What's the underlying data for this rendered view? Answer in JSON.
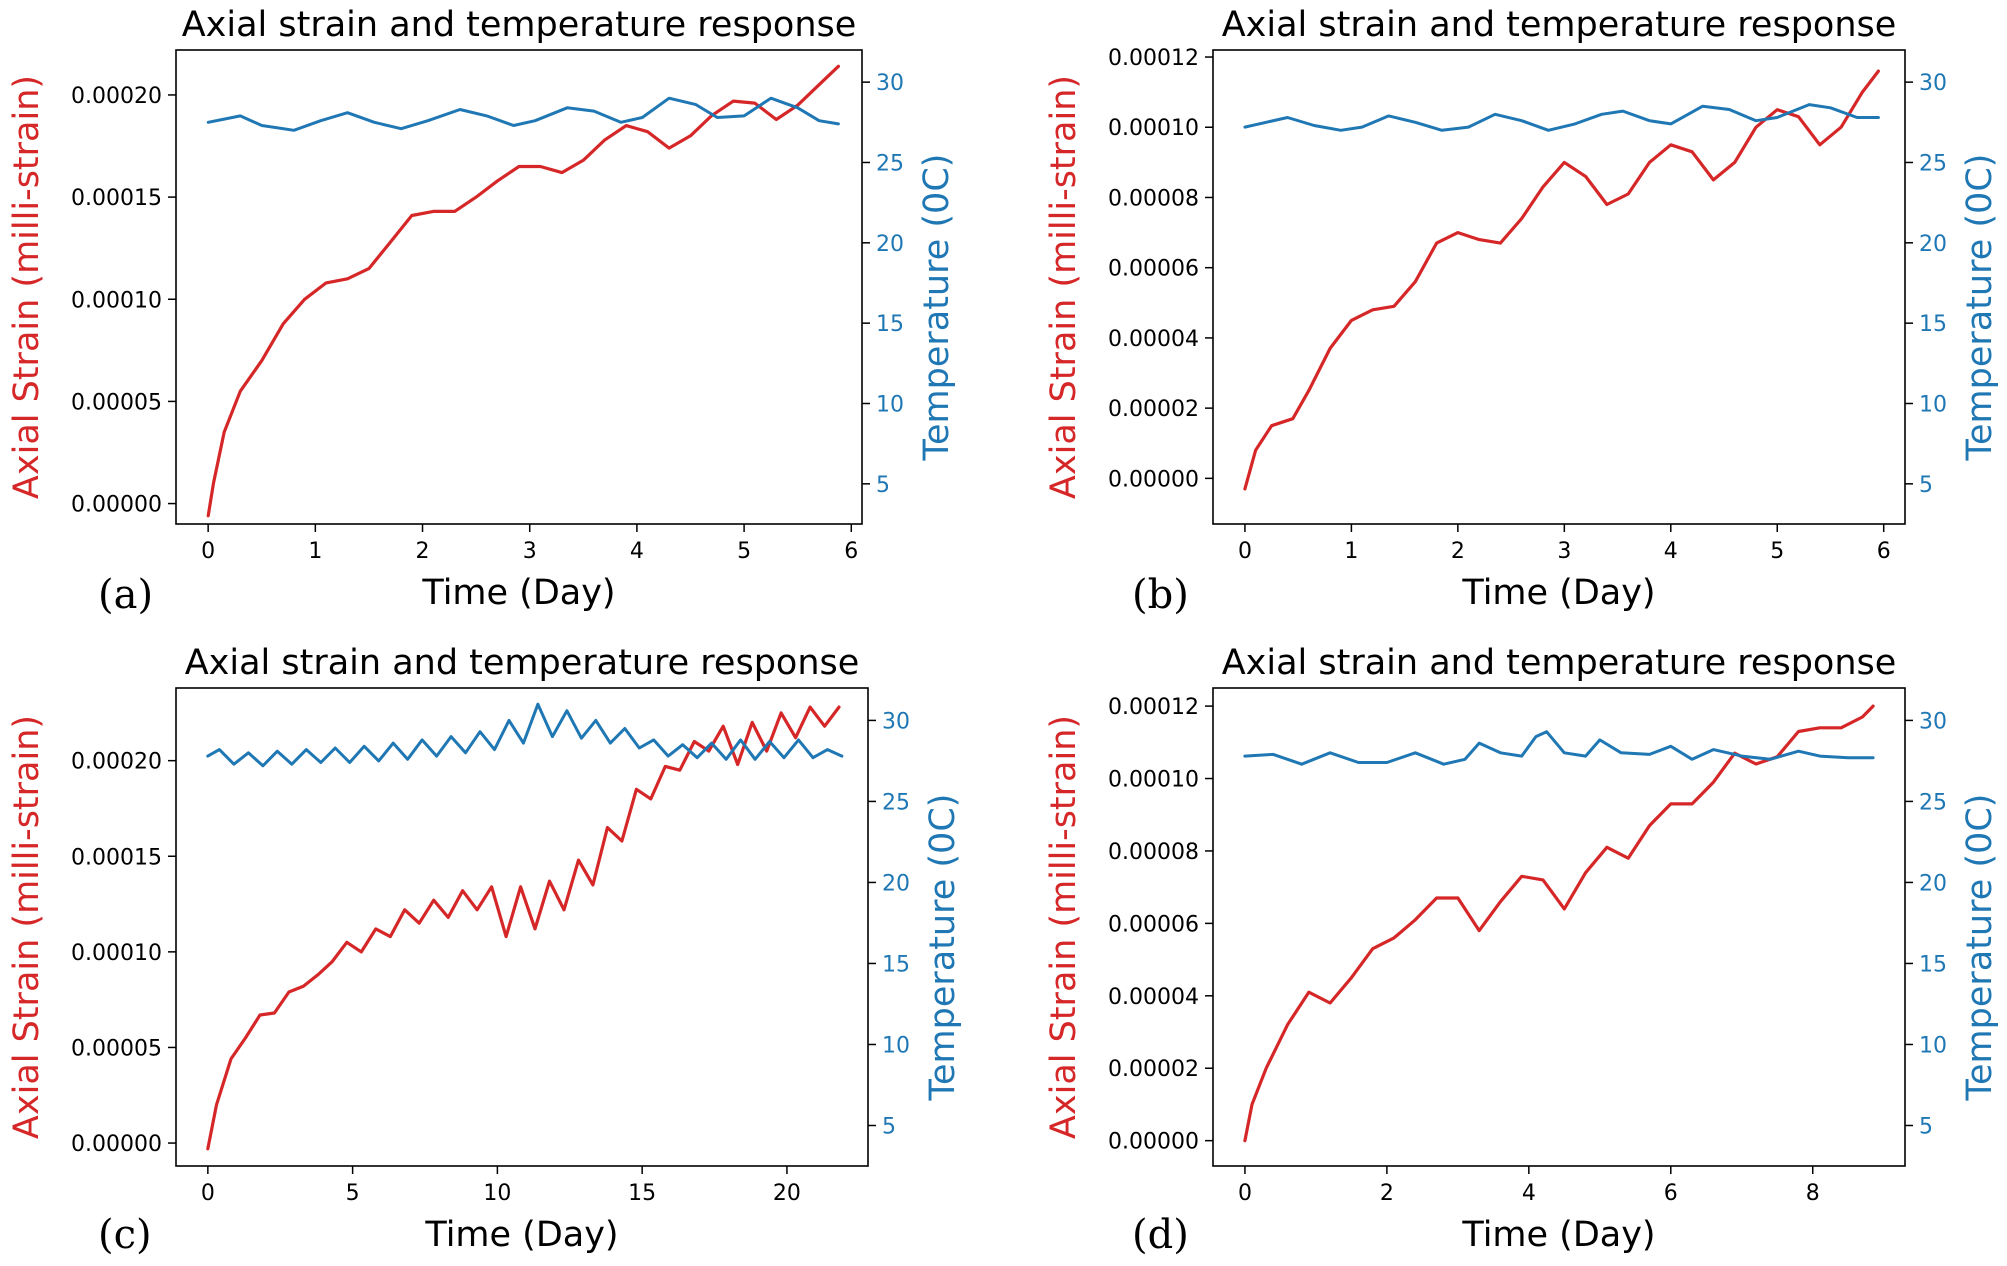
{
  "colors": {
    "strain": "#d62728",
    "temperature": "#1f77b4",
    "axes": "#000000"
  },
  "chart_data": [
    {
      "panel_label": "(a)",
      "type": "line",
      "title": "Axial strain and temperature response",
      "xlabel": "Time (Day)",
      "ylabel": "Axial Strain (milli-strain)",
      "y2label": "Temperature (0C)",
      "xlim": [
        -0.3,
        6.1
      ],
      "ylim": [
        -1e-05,
        0.000222
      ],
      "y2lim": [
        2.5,
        32
      ],
      "xticks": [
        0,
        1,
        2,
        3,
        4,
        5,
        6
      ],
      "yticks": [
        0,
        5e-05,
        0.0001,
        0.00015,
        0.0002
      ],
      "ytick_labels": [
        "0.00000",
        "0.00005",
        "0.00010",
        "0.00015",
        "0.00020"
      ],
      "y2ticks": [
        5,
        10,
        15,
        20,
        25,
        30
      ],
      "series": [
        {
          "name": "Axial strain",
          "axis": "left",
          "x": [
            0,
            0.05,
            0.15,
            0.3,
            0.5,
            0.7,
            0.9,
            1.1,
            1.3,
            1.5,
            1.7,
            1.9,
            2.1,
            2.3,
            2.5,
            2.7,
            2.9,
            3.1,
            3.3,
            3.5,
            3.7,
            3.9,
            4.1,
            4.3,
            4.5,
            4.7,
            4.9,
            5.1,
            5.3,
            5.5,
            5.7,
            5.88
          ],
          "y": [
            -6e-06,
            1e-05,
            3.5e-05,
            5.5e-05,
            7e-05,
            8.8e-05,
            0.0001,
            0.000108,
            0.00011,
            0.000115,
            0.000128,
            0.000141,
            0.000143,
            0.000143,
            0.00015,
            0.000158,
            0.000165,
            0.000165,
            0.000162,
            0.000168,
            0.000178,
            0.000185,
            0.000182,
            0.000174,
            0.00018,
            0.00019,
            0.000197,
            0.000196,
            0.000188,
            0.000195,
            0.000205,
            0.000214
          ]
        },
        {
          "name": "Temperature",
          "axis": "right",
          "x": [
            0,
            0.15,
            0.3,
            0.5,
            0.8,
            1.05,
            1.3,
            1.55,
            1.8,
            2.05,
            2.35,
            2.6,
            2.85,
            3.05,
            3.35,
            3.6,
            3.85,
            4.05,
            4.3,
            4.55,
            4.75,
            5.0,
            5.25,
            5.5,
            5.7,
            5.88
          ],
          "y": [
            27.5,
            27.7,
            27.9,
            27.3,
            27.0,
            27.6,
            28.1,
            27.5,
            27.1,
            27.6,
            28.3,
            27.9,
            27.3,
            27.6,
            28.4,
            28.2,
            27.5,
            27.8,
            29.0,
            28.6,
            27.8,
            27.9,
            29.0,
            28.4,
            27.6,
            27.4
          ]
        }
      ]
    },
    {
      "panel_label": "(b)",
      "type": "line",
      "title": "Axial strain and temperature response",
      "xlabel": "Time (Day)",
      "ylabel": "Axial Strain (milli-strain)",
      "y2label": "Temperature (0C)",
      "xlim": [
        -0.3,
        6.2
      ],
      "ylim": [
        -1.3e-05,
        0.000122
      ],
      "y2lim": [
        2.5,
        32
      ],
      "xticks": [
        0,
        1,
        2,
        3,
        4,
        5,
        6
      ],
      "yticks": [
        0,
        2e-05,
        4e-05,
        6e-05,
        8e-05,
        0.0001,
        0.00012
      ],
      "ytick_labels": [
        "0.00000",
        "0.00002",
        "0.00004",
        "0.00006",
        "0.00008",
        "0.00010",
        "0.00012"
      ],
      "y2ticks": [
        5,
        10,
        15,
        20,
        25,
        30
      ],
      "series": [
        {
          "name": "Axial strain",
          "axis": "left",
          "x": [
            0,
            0.1,
            0.25,
            0.45,
            0.6,
            0.8,
            1.0,
            1.2,
            1.4,
            1.6,
            1.8,
            2.0,
            2.2,
            2.4,
            2.6,
            2.8,
            3.0,
            3.2,
            3.4,
            3.6,
            3.8,
            4.0,
            4.2,
            4.4,
            4.6,
            4.8,
            5.0,
            5.2,
            5.4,
            5.6,
            5.8,
            5.95
          ],
          "y": [
            -3e-06,
            8e-06,
            1.5e-05,
            1.7e-05,
            2.5e-05,
            3.7e-05,
            4.5e-05,
            4.8e-05,
            4.9e-05,
            5.6e-05,
            6.7e-05,
            7e-05,
            6.8e-05,
            6.7e-05,
            7.4e-05,
            8.3e-05,
            9e-05,
            8.6e-05,
            7.8e-05,
            8.1e-05,
            9e-05,
            9.5e-05,
            9.3e-05,
            8.5e-05,
            9e-05,
            0.0001,
            0.000105,
            0.000103,
            9.5e-05,
            0.0001,
            0.00011,
            0.000116
          ]
        },
        {
          "name": "Temperature",
          "axis": "right",
          "x": [
            0,
            0.2,
            0.4,
            0.65,
            0.9,
            1.1,
            1.35,
            1.6,
            1.85,
            2.1,
            2.35,
            2.6,
            2.85,
            3.1,
            3.35,
            3.55,
            3.8,
            4.0,
            4.3,
            4.55,
            4.8,
            5.0,
            5.3,
            5.5,
            5.75,
            5.95
          ],
          "y": [
            27.2,
            27.5,
            27.8,
            27.3,
            27.0,
            27.2,
            27.9,
            27.5,
            27.0,
            27.2,
            28.0,
            27.6,
            27.0,
            27.4,
            28.0,
            28.2,
            27.6,
            27.4,
            28.5,
            28.3,
            27.6,
            27.8,
            28.6,
            28.4,
            27.8,
            27.8
          ]
        }
      ]
    },
    {
      "panel_label": "(c)",
      "type": "line",
      "title": "Axial strain and temperature response",
      "xlabel": "Time (Day)",
      "ylabel": "Axial Strain (milli-strain)",
      "y2label": "Temperature (0C)",
      "xlim": [
        -1.1,
        22.8
      ],
      "ylim": [
        -1.2e-05,
        0.000238
      ],
      "y2lim": [
        2.5,
        32
      ],
      "xticks": [
        0,
        5,
        10,
        15,
        20
      ],
      "yticks": [
        0,
        5e-05,
        0.0001,
        0.00015,
        0.0002
      ],
      "ytick_labels": [
        "0.00000",
        "0.00005",
        "0.00010",
        "0.00015",
        "0.00020"
      ],
      "y2ticks": [
        5,
        10,
        15,
        20,
        25,
        30
      ],
      "series": [
        {
          "name": "Axial strain",
          "axis": "left",
          "x": [
            0,
            0.3,
            0.8,
            1.3,
            1.8,
            2.3,
            2.8,
            3.3,
            3.8,
            4.3,
            4.8,
            5.3,
            5.8,
            6.3,
            6.8,
            7.3,
            7.8,
            8.3,
            8.8,
            9.3,
            9.8,
            10.3,
            10.8,
            11.3,
            11.8,
            12.3,
            12.8,
            13.3,
            13.8,
            14.3,
            14.8,
            15.3,
            15.8,
            16.3,
            16.8,
            17.3,
            17.8,
            18.3,
            18.8,
            19.3,
            19.8,
            20.3,
            20.8,
            21.3,
            21.8
          ],
          "y": [
            -3e-06,
            2e-05,
            4.4e-05,
            5.5e-05,
            6.7e-05,
            6.8e-05,
            7.9e-05,
            8.2e-05,
            8.8e-05,
            9.5e-05,
            0.000105,
            0.0001,
            0.000112,
            0.000108,
            0.000122,
            0.000115,
            0.000127,
            0.000118,
            0.000132,
            0.000122,
            0.000134,
            0.000108,
            0.000134,
            0.000112,
            0.000137,
            0.000122,
            0.000148,
            0.000135,
            0.000165,
            0.000158,
            0.000185,
            0.00018,
            0.000197,
            0.000195,
            0.00021,
            0.000205,
            0.000218,
            0.000198,
            0.00022,
            0.000205,
            0.000225,
            0.000212,
            0.000228,
            0.000218,
            0.000228
          ]
        },
        {
          "name": "Temperature",
          "axis": "right",
          "x": [
            0,
            0.4,
            0.9,
            1.4,
            1.9,
            2.4,
            2.9,
            3.4,
            3.9,
            4.4,
            4.9,
            5.4,
            5.9,
            6.4,
            6.9,
            7.4,
            7.9,
            8.4,
            8.9,
            9.4,
            9.9,
            10.4,
            10.9,
            11.4,
            11.9,
            12.4,
            12.9,
            13.4,
            13.9,
            14.4,
            14.9,
            15.4,
            15.9,
            16.4,
            16.9,
            17.4,
            17.9,
            18.4,
            18.9,
            19.4,
            19.9,
            20.4,
            20.9,
            21.4,
            21.9
          ],
          "y": [
            27.8,
            28.2,
            27.3,
            28.0,
            27.2,
            28.1,
            27.3,
            28.2,
            27.4,
            28.3,
            27.4,
            28.4,
            27.5,
            28.6,
            27.6,
            28.8,
            27.8,
            29.0,
            28.0,
            29.3,
            28.2,
            30.0,
            28.6,
            31.0,
            29.0,
            30.6,
            28.9,
            30.0,
            28.6,
            29.5,
            28.3,
            28.8,
            27.8,
            28.5,
            27.7,
            28.6,
            27.6,
            28.8,
            27.6,
            28.7,
            27.7,
            28.8,
            27.7,
            28.2,
            27.8
          ]
        }
      ]
    },
    {
      "panel_label": "(d)",
      "type": "line",
      "title": "Axial strain and temperature response",
      "xlabel": "Time (Day)",
      "ylabel": "Axial Strain (milli-strain)",
      "y2label": "Temperature (0C)",
      "xlim": [
        -0.45,
        9.3
      ],
      "ylim": [
        -7e-06,
        0.000125
      ],
      "y2lim": [
        2.5,
        32
      ],
      "xticks": [
        0,
        2,
        4,
        6,
        8
      ],
      "yticks": [
        0,
        2e-05,
        4e-05,
        6e-05,
        8e-05,
        0.0001,
        0.00012
      ],
      "ytick_labels": [
        "0.00000",
        "0.00002",
        "0.00004",
        "0.00006",
        "0.00008",
        "0.00010",
        "0.00012"
      ],
      "y2ticks": [
        5,
        10,
        15,
        20,
        25,
        30
      ],
      "series": [
        {
          "name": "Axial strain",
          "axis": "left",
          "x": [
            0,
            0.1,
            0.3,
            0.6,
            0.9,
            1.2,
            1.5,
            1.8,
            2.1,
            2.4,
            2.7,
            3.0,
            3.3,
            3.6,
            3.9,
            4.2,
            4.5,
            4.8,
            5.1,
            5.4,
            5.7,
            6.0,
            6.3,
            6.6,
            6.9,
            7.2,
            7.5,
            7.8,
            8.1,
            8.4,
            8.7,
            8.85
          ],
          "y": [
            0,
            1e-05,
            2e-05,
            3.2e-05,
            4.1e-05,
            3.8e-05,
            4.5e-05,
            5.3e-05,
            5.6e-05,
            6.1e-05,
            6.7e-05,
            6.7e-05,
            5.8e-05,
            6.6e-05,
            7.3e-05,
            7.2e-05,
            6.4e-05,
            7.4e-05,
            8.1e-05,
            7.8e-05,
            8.7e-05,
            9.3e-05,
            9.3e-05,
            9.9e-05,
            0.000107,
            0.000104,
            0.000106,
            0.000113,
            0.000114,
            0.000114,
            0.000117,
            0.00012
          ]
        },
        {
          "name": "Temperature",
          "axis": "right",
          "x": [
            0,
            0.4,
            0.8,
            1.2,
            1.6,
            2.0,
            2.4,
            2.8,
            3.1,
            3.3,
            3.6,
            3.9,
            4.1,
            4.25,
            4.5,
            4.8,
            5.0,
            5.3,
            5.7,
            6.0,
            6.3,
            6.6,
            7.0,
            7.4,
            7.8,
            8.1,
            8.5,
            8.85
          ],
          "y": [
            27.8,
            27.9,
            27.3,
            28.0,
            27.4,
            27.4,
            28.0,
            27.3,
            27.6,
            28.6,
            28.0,
            27.8,
            29.0,
            29.3,
            28.0,
            27.8,
            28.8,
            28.0,
            27.9,
            28.4,
            27.6,
            28.2,
            27.8,
            27.6,
            28.1,
            27.8,
            27.7,
            27.7
          ]
        }
      ]
    }
  ]
}
